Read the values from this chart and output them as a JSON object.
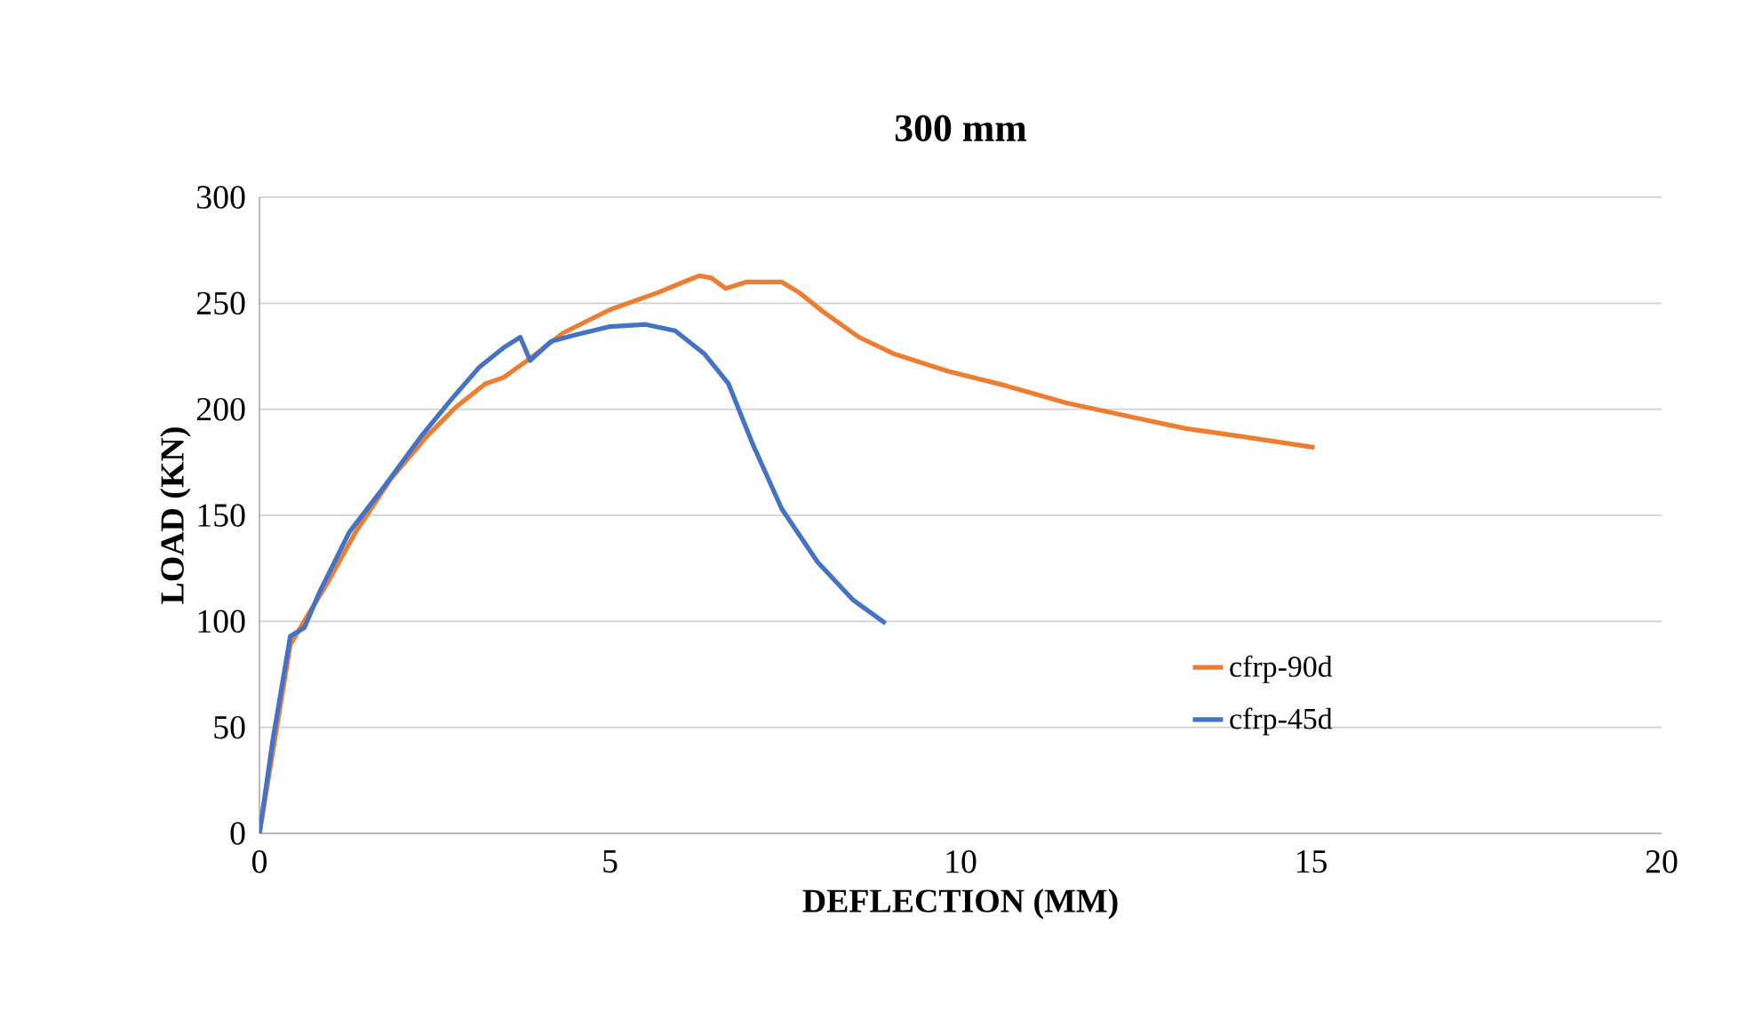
{
  "chart_data": {
    "type": "line",
    "title": "300 mm",
    "xlabel": "DEFLECTION (MM)",
    "ylabel": "LOAD (KN)",
    "xlim": [
      0,
      20
    ],
    "xticks": [
      0,
      5,
      10,
      15,
      20
    ],
    "ylim": [
      0,
      300
    ],
    "yticks": [
      0,
      50,
      100,
      150,
      200,
      250,
      300
    ],
    "grid": "y",
    "legend": "right",
    "line_style": "solid",
    "marker": "none",
    "series": [
      {
        "name": "cfrp-90d",
        "color": "#ed7d31",
        "x": [
          0,
          0.19,
          0.44,
          0.69,
          0.95,
          1.37,
          1.87,
          2.38,
          2.8,
          3.22,
          3.48,
          3.82,
          4.33,
          5.0,
          5.68,
          6.27,
          6.44,
          6.65,
          6.94,
          7.45,
          7.7,
          8.04,
          8.55,
          9.06,
          9.82,
          10.66,
          11.51,
          12.35,
          13.2,
          14.04,
          15.05
        ],
        "values": [
          0,
          null,
          89,
          103,
          117,
          142,
          167,
          187,
          201,
          212,
          215,
          223,
          236,
          247,
          255,
          263,
          262,
          257,
          260,
          260,
          255,
          246,
          234,
          226,
          218,
          211,
          203,
          197,
          191,
          187,
          182
        ]
      },
      {
        "name": "cfrp-45d",
        "color": "#4472c4",
        "x": [
          0,
          0.19,
          0.44,
          0.64,
          0.86,
          1.28,
          1.79,
          2.3,
          2.72,
          3.14,
          3.48,
          3.72,
          3.86,
          4.16,
          4.5,
          5.0,
          5.51,
          5.93,
          6.35,
          6.69,
          7.03,
          7.45,
          7.96,
          8.47,
          8.93
        ],
        "values": [
          0,
          44,
          93,
          97,
          114,
          142,
          164,
          187,
          204,
          220,
          229,
          234,
          223,
          232,
          235,
          239,
          240,
          237,
          226,
          212,
          184,
          153,
          128,
          110,
          99
        ]
      }
    ]
  }
}
